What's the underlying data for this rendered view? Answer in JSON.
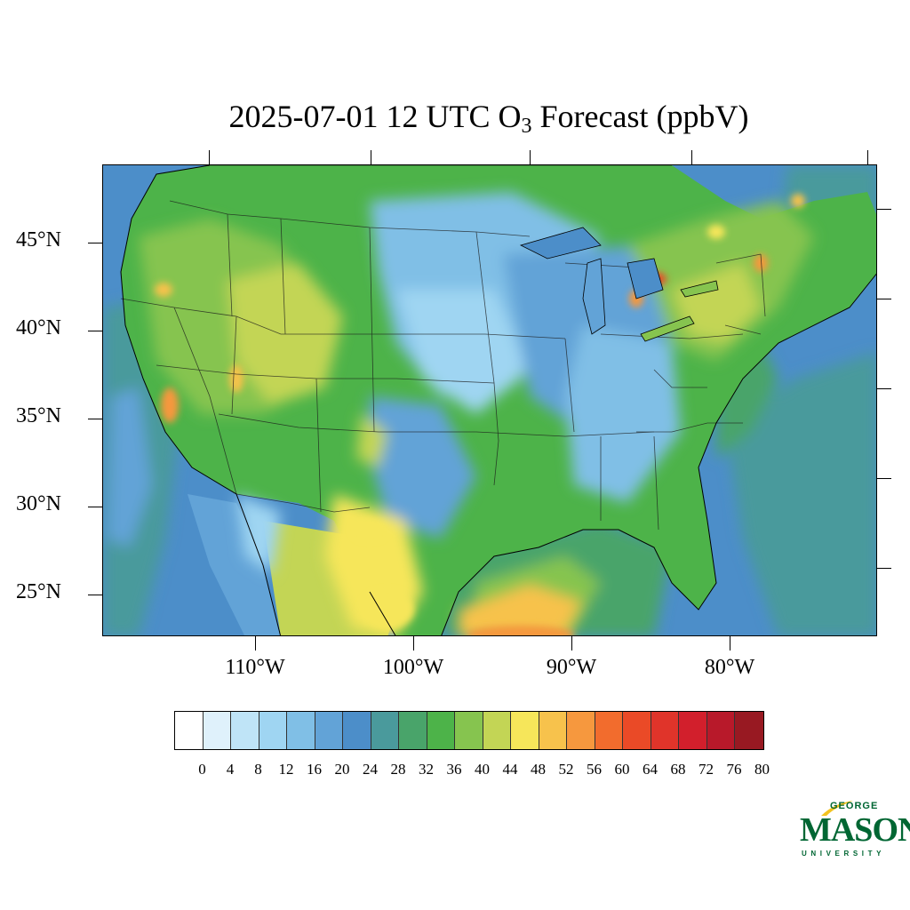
{
  "map": {
    "title_main": "2025-07-01 12 UTC O",
    "title_sub": "3",
    "title_tail": " Forecast (ppbV)",
    "background_color": "#4c8ec9",
    "lat_labels": [
      "45°N",
      "40°N",
      "35°N",
      "30°N",
      "25°N"
    ],
    "lon_labels": [
      "110°W",
      "100°W",
      "90°W",
      "80°W"
    ]
  },
  "colorbar": {
    "labels": [
      "0",
      "4",
      "8",
      "12",
      "16",
      "20",
      "24",
      "28",
      "32",
      "36",
      "40",
      "44",
      "48",
      "52",
      "56",
      "60",
      "64",
      "68",
      "72",
      "76",
      "80"
    ],
    "colors": [
      "#ffffff",
      "#dff1fb",
      "#bfe4f7",
      "#9fd5f2",
      "#80bfe6",
      "#62a3d7",
      "#4c8ec9",
      "#4a9a9c",
      "#49a46a",
      "#4db349",
      "#86c44f",
      "#c3d555",
      "#f6e65a",
      "#f7c24c",
      "#f6983e",
      "#f26c2d",
      "#ea4a27",
      "#e0342a",
      "#d21f2c",
      "#b8192a",
      "#981922"
    ]
  },
  "logo": {
    "george": "GEORGE",
    "mason": "MASON",
    "university": "UNIVERSITY",
    "color": "#006633",
    "accent": "#f3c320"
  }
}
